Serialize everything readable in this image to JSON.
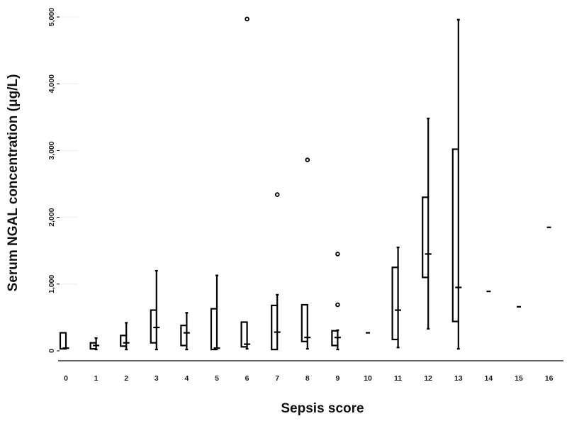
{
  "chart_data": {
    "type": "boxplot",
    "title": "",
    "xlabel": "Sepsis score",
    "ylabel": "Serum NGAL concentration (μg/L)",
    "ylim": [
      0,
      5000
    ],
    "yticks": [
      0,
      1000,
      2000,
      3000,
      4000,
      5000
    ],
    "ytick_labels": [
      "0",
      "1,000",
      "2,000",
      "3,000",
      "4,000",
      "5,000"
    ],
    "grid": "faint horizontal",
    "legend": "none",
    "categories": [
      "0",
      "1",
      "2",
      "3",
      "4",
      "5",
      "6",
      "7",
      "8",
      "9",
      "10",
      "11",
      "12",
      "13",
      "14",
      "15",
      "16"
    ],
    "boxes": [
      {
        "category": "0",
        "min": 30,
        "q1": 30,
        "median": 40,
        "q3": 270,
        "max": 270,
        "outliers": []
      },
      {
        "category": "1",
        "min": 20,
        "q1": 30,
        "median": 80,
        "q3": 120,
        "max": 190,
        "outliers": []
      },
      {
        "category": "2",
        "min": 20,
        "q1": 70,
        "median": 120,
        "q3": 230,
        "max": 420,
        "outliers": []
      },
      {
        "category": "3",
        "min": 20,
        "q1": 120,
        "median": 350,
        "q3": 610,
        "max": 1200,
        "outliers": []
      },
      {
        "category": "4",
        "min": 20,
        "q1": 80,
        "median": 270,
        "q3": 380,
        "max": 570,
        "outliers": []
      },
      {
        "category": "5",
        "min": 20,
        "q1": 20,
        "median": 40,
        "q3": 630,
        "max": 1130,
        "outliers": []
      },
      {
        "category": "6",
        "min": 30,
        "q1": 60,
        "median": 100,
        "q3": 430,
        "max": 430,
        "outliers": [
          4970
        ]
      },
      {
        "category": "7",
        "min": 20,
        "q1": 20,
        "median": 280,
        "q3": 680,
        "max": 840,
        "outliers": [
          2340
        ]
      },
      {
        "category": "8",
        "min": 30,
        "q1": 140,
        "median": 200,
        "q3": 690,
        "max": 690,
        "outliers": [
          2860
        ]
      },
      {
        "category": "9",
        "min": 20,
        "q1": 80,
        "median": 200,
        "q3": 300,
        "max": 310,
        "outliers": [
          1450,
          690
        ]
      },
      {
        "category": "10",
        "min": 270,
        "q1": 270,
        "median": 270,
        "q3": 270,
        "max": 270,
        "outliers": []
      },
      {
        "category": "11",
        "min": 50,
        "q1": 170,
        "median": 610,
        "q3": 1250,
        "max": 1550,
        "outliers": []
      },
      {
        "category": "12",
        "min": 330,
        "q1": 1100,
        "median": 1450,
        "q3": 2300,
        "max": 3480,
        "outliers": []
      },
      {
        "category": "13",
        "min": 30,
        "q1": 440,
        "median": 950,
        "q3": 3020,
        "max": 4960,
        "outliers": []
      },
      {
        "category": "14",
        "min": 890,
        "q1": 890,
        "median": 890,
        "q3": 890,
        "max": 890,
        "outliers": []
      },
      {
        "category": "15",
        "min": 660,
        "q1": 660,
        "median": 660,
        "q3": 660,
        "max": 660,
        "outliers": []
      },
      {
        "category": "16",
        "min": 1850,
        "q1": 1850,
        "median": 1850,
        "q3": 1850,
        "max": 1850,
        "outliers": []
      }
    ]
  }
}
